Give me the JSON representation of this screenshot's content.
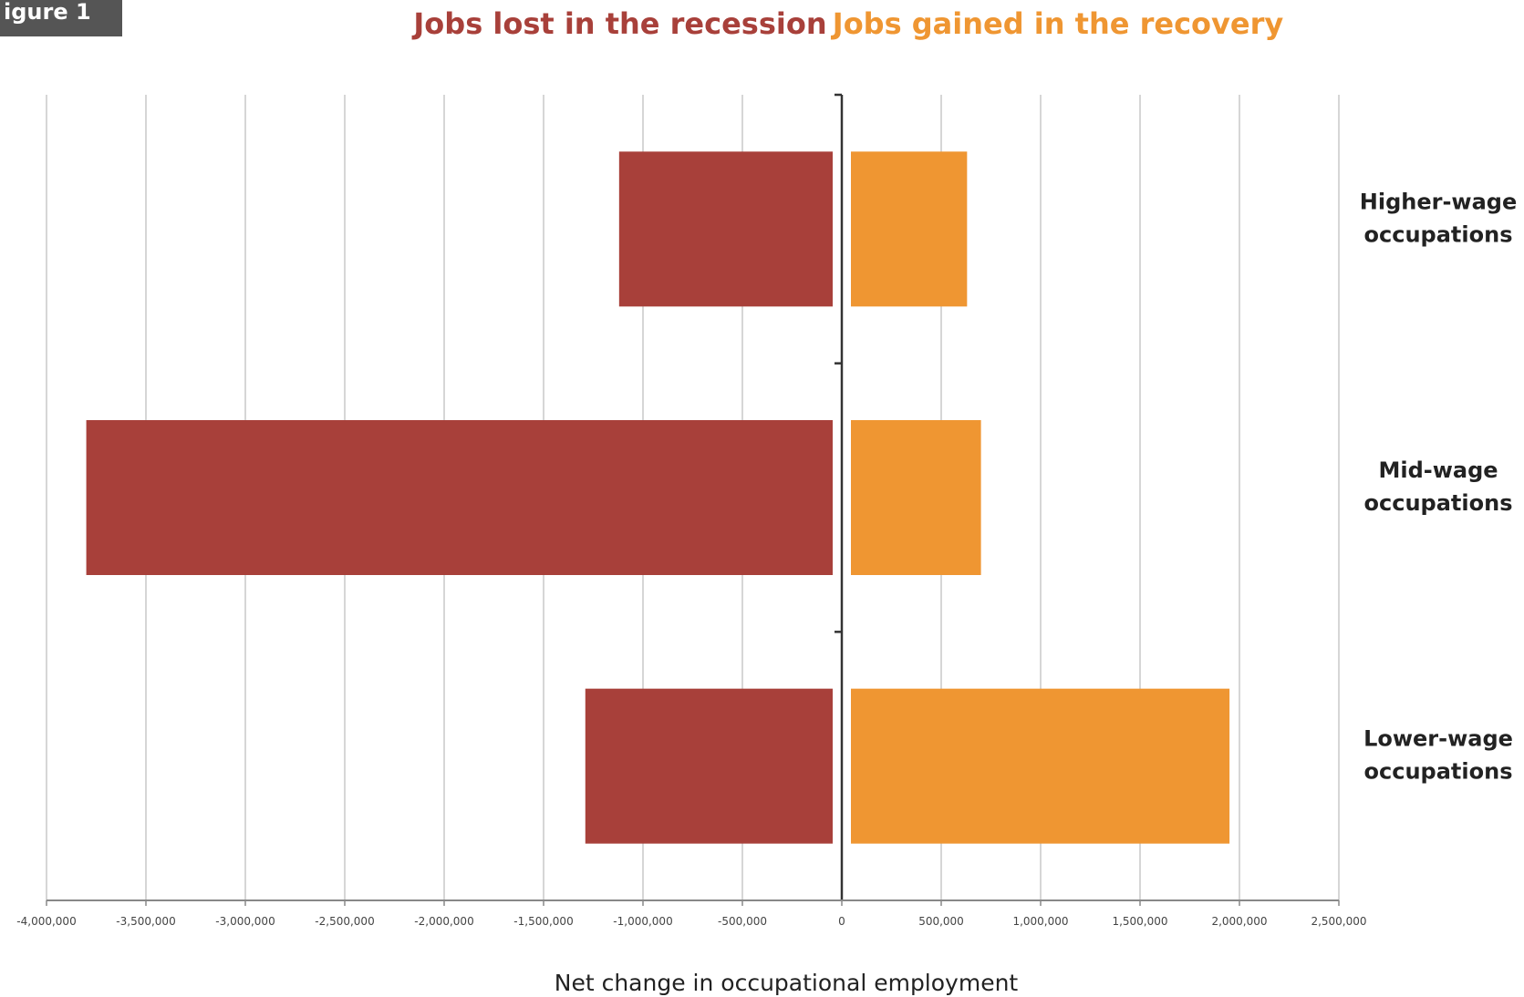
{
  "figure_label": "igure 1",
  "colors": {
    "recession": "#a8403a",
    "recovery": "#ef9632",
    "gridline": "#c8c8c8",
    "axis": "#333333",
    "text": "#222222"
  },
  "chart_data": {
    "type": "bar",
    "orientation": "horizontal",
    "layout": "diverging",
    "categories": [
      "Higher-wage occupations",
      "Mid-wage occupations",
      "Lower-wage occupations"
    ],
    "category_lines": [
      [
        "Higher-wage",
        "occupations"
      ],
      [
        "Mid-wage",
        "occupations"
      ],
      [
        "Lower-wage",
        "occupations"
      ]
    ],
    "series": [
      {
        "name": "Jobs lost in the recession",
        "values": [
          -1120000,
          -3800000,
          -1290000
        ]
      },
      {
        "name": "Jobs gained in the recovery",
        "values": [
          630000,
          700000,
          1950000
        ]
      }
    ],
    "xlabel": "Net change in occupational employment",
    "xlim": [
      -4000000,
      2500000
    ],
    "xticks": [
      -4000000,
      -3500000,
      -3000000,
      -2500000,
      -2000000,
      -1500000,
      -1000000,
      -500000,
      0,
      500000,
      1000000,
      1500000,
      2000000,
      2500000
    ],
    "xtick_labels": [
      "-4,000,000",
      "-3,500,000",
      "-3,000,000",
      "-2,500,000",
      "-2,000,000",
      "-1,500,000",
      "-1,000,000",
      "-500,000",
      "0",
      "500,000",
      "1,000,000",
      "1,500,000",
      "2,000,000",
      "2,500,000"
    ],
    "grid": "vertical",
    "legend_position": "top"
  }
}
